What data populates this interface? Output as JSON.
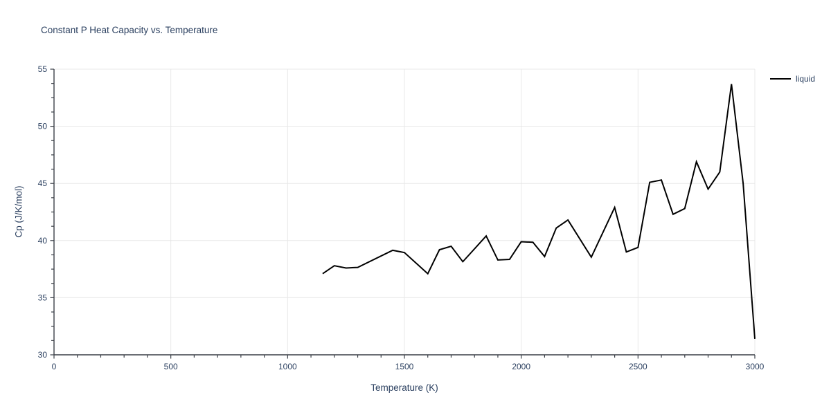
{
  "title": "Constant P Heat Capacity vs. Temperature",
  "legend": {
    "items": [
      {
        "label": "liquid",
        "color": "#000000"
      }
    ]
  },
  "colors": {
    "text": "#2a3f5f",
    "grid": "#e8e8e8",
    "axis": "#3a3f47",
    "line": "#000000",
    "background": "#ffffff"
  },
  "chart_data": {
    "type": "line",
    "title": "Constant P Heat Capacity vs. Temperature",
    "xlabel": "Temperature (K)",
    "ylabel": "Cp (J/K/mol)",
    "xlim": [
      0,
      3000
    ],
    "ylim": [
      30,
      55
    ],
    "x_ticks": [
      0,
      500,
      1000,
      1500,
      2000,
      2500,
      3000
    ],
    "y_ticks": [
      30,
      35,
      40,
      45,
      50,
      55
    ],
    "x_minor_step": 100,
    "y_minor_step": 1.25,
    "grid": true,
    "legend_position": "top-right",
    "series": [
      {
        "name": "liquid",
        "color": "#000000",
        "x": [
          1150,
          1200,
          1250,
          1300,
          1450,
          1500,
          1600,
          1650,
          1700,
          1750,
          1850,
          1900,
          1950,
          2000,
          2050,
          2100,
          2150,
          2200,
          2300,
          2400,
          2450,
          2500,
          2550,
          2600,
          2650,
          2700,
          2750,
          2800,
          2850,
          2900,
          2950,
          3000
        ],
        "y": [
          37.1,
          37.8,
          37.6,
          37.65,
          39.15,
          38.95,
          37.1,
          39.2,
          39.5,
          38.15,
          40.4,
          38.3,
          38.35,
          39.9,
          39.85,
          38.6,
          41.1,
          41.8,
          38.55,
          42.9,
          39.0,
          39.4,
          45.1,
          45.3,
          42.3,
          42.8,
          46.9,
          44.5,
          46.0,
          53.7,
          45.0,
          31.4
        ]
      }
    ]
  }
}
